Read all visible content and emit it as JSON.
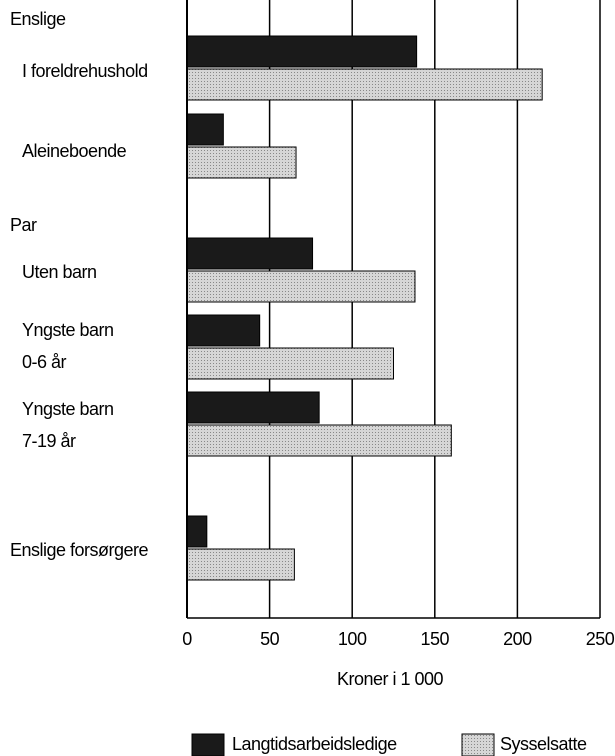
{
  "chart_data": {
    "type": "bar",
    "orientation": "horizontal",
    "group_labels": [
      "Enslige",
      "Par"
    ],
    "categories": [
      "I foreldrehushold",
      "Aleineboende",
      "Uten barn",
      [
        "Yngste barn",
        "0-6 år"
      ],
      [
        "Yngste barn",
        "7-19 år"
      ],
      "Enslige forsørgere"
    ],
    "series": [
      {
        "name": "Langtidsarbeidsledige",
        "color": "#1a1a1a",
        "values": [
          139,
          22,
          76,
          44,
          80,
          12
        ]
      },
      {
        "name": "Sysselsatte",
        "color": "#c4c4c4",
        "values": [
          215,
          66,
          138,
          125,
          160,
          65
        ]
      }
    ],
    "xlim": [
      0,
      250
    ],
    "xticks": [
      0,
      50,
      100,
      150,
      200,
      250
    ],
    "xlabel": "Kroner i 1 000",
    "grid": true,
    "legend": "bottom"
  }
}
